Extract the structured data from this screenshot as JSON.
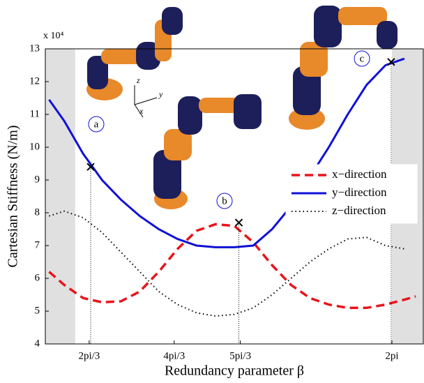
{
  "chart_data": {
    "type": "line",
    "x_label": "Redundancy parameter β",
    "y_label": "Cartesian Stiffness (N/m)",
    "y_multiplier": "x 10⁴",
    "xlim": [
      0,
      100
    ],
    "ylim": [
      4,
      13
    ],
    "yticks": [
      4,
      5,
      6,
      7,
      8,
      9,
      10,
      11,
      12,
      13
    ],
    "xticks": [
      {
        "value": 11.6,
        "label": "2pi/3"
      },
      {
        "value": 34.1,
        "label": "4pi/3"
      },
      {
        "value": 51.6,
        "label": "5pi/3"
      },
      {
        "value": 91.7,
        "label": "2pi"
      }
    ],
    "shaded": [
      [
        0,
        7.9
      ],
      [
        91.7,
        100
      ]
    ],
    "x": [
      1,
      5,
      10,
      15,
      20,
      25,
      30,
      35,
      40,
      45,
      50,
      55,
      60,
      65,
      70,
      75,
      80,
      85,
      90,
      95,
      98
    ],
    "series": [
      {
        "name": "x−direction",
        "color": "#e8141b",
        "dash": "dashed",
        "values": [
          6.2,
          5.8,
          5.4,
          5.27,
          5.3,
          5.6,
          6.2,
          6.9,
          7.45,
          7.65,
          7.6,
          7.1,
          6.4,
          5.8,
          5.4,
          5.2,
          5.1,
          5.1,
          5.2,
          5.35,
          5.45
        ]
      },
      {
        "name": "y−direction",
        "color": "#1010d8",
        "dash": "solid",
        "values": [
          11.45,
          10.8,
          9.8,
          9.0,
          8.4,
          7.9,
          7.5,
          7.2,
          7.0,
          6.95,
          6.95,
          7.0,
          7.5,
          8.2,
          9.1,
          10.0,
          11.0,
          11.9,
          12.5,
          12.7,
          null
        ]
      },
      {
        "name": "z−direction",
        "color": "#000000",
        "dash": "dotted",
        "values": [
          7.9,
          8.05,
          7.85,
          7.4,
          6.8,
          6.2,
          5.6,
          5.2,
          4.95,
          4.85,
          4.9,
          5.1,
          5.5,
          6.0,
          6.5,
          6.9,
          7.2,
          7.25,
          7.0,
          6.9,
          null
        ]
      }
    ],
    "markers": [
      {
        "label": "a",
        "x": 12.0,
        "y": 9.4
      },
      {
        "label": "b",
        "x": 51.2,
        "y": 7.7
      },
      {
        "label": "c",
        "x": 91.5,
        "y": 12.6
      }
    ],
    "frame_labels": [
      "z",
      "y",
      "x"
    ],
    "legend": "right",
    "grid": false
  }
}
